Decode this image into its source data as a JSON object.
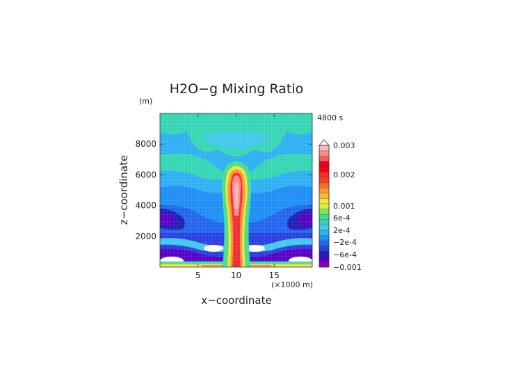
{
  "chart_data": {
    "type": "heatmap",
    "title": "H2O−g Mixing Ratio",
    "time_label": "4800 s",
    "xlabel": "x−coordinate",
    "ylabel": "z−coordinate",
    "x_unit": "(×1000 m)",
    "y_unit": "(m)",
    "xlim": [
      0,
      20
    ],
    "ylim": [
      0,
      10000
    ],
    "x_ticks": [
      "5",
      "10",
      "15"
    ],
    "y_ticks": [
      "2000",
      "4000",
      "6000",
      "8000"
    ],
    "x_tick_values": [
      5,
      10,
      15
    ],
    "y_tick_values": [
      2000,
      4000,
      6000,
      8000
    ],
    "grid": true,
    "colorbar": {
      "levels": [
        {
          "label": "0.003",
          "value": 0.003
        },
        {
          "label": "0.002",
          "value": 0.002
        },
        {
          "label": "0.001",
          "value": 0.001
        },
        {
          "label": "6e-4",
          "value": 0.0006
        },
        {
          "label": "2e-4",
          "value": 0.0002
        },
        {
          "label": "−2e-4",
          "value": -0.0002
        },
        {
          "label": "−6e-4",
          "value": -0.0006
        },
        {
          "label": "−0.001",
          "value": -0.001
        }
      ],
      "colors": [
        "#8b00c8",
        "#5a00c8",
        "#2020b4",
        "#2a40e0",
        "#2266ee",
        "#1f8ef5",
        "#2fb0f4",
        "#44c8ee",
        "#36d6b4",
        "#40e090",
        "#7ae85a",
        "#d8f040",
        "#f6e03a",
        "#f8b838",
        "#f89838",
        "#ff6820",
        "#ff4010",
        "#f03030",
        "#ff0000",
        "#e80030",
        "#ff5a5a",
        "#ff8a8a",
        "#ffb8b8"
      ]
    },
    "regions": [
      {
        "name": "background upper",
        "x": [
          0,
          20
        ],
        "y": [
          6200,
          10000
        ],
        "value": -0.0003
      },
      {
        "name": "upper lobes",
        "x": [
          2,
          18
        ],
        "y": [
          7300,
          9800
        ],
        "value": 0.0
      },
      {
        "name": "middle layer",
        "x": [
          0,
          20
        ],
        "y": [
          2000,
          6200
        ],
        "value": -0.0004
      },
      {
        "name": "lower layer",
        "x": [
          0,
          20
        ],
        "y": [
          0,
          2000
        ],
        "value": -0.0008
      },
      {
        "name": "central plume",
        "x": [
          9,
          11
        ],
        "y": [
          0,
          6800
        ],
        "value": 0.002
      },
      {
        "name": "plume core",
        "x": [
          9.6,
          10.4
        ],
        "y": [
          3500,
          6200
        ],
        "value": 0.003
      },
      {
        "name": "surface layer",
        "x": [
          0,
          20
        ],
        "y": [
          0,
          200
        ],
        "value": 0.0006
      }
    ]
  }
}
